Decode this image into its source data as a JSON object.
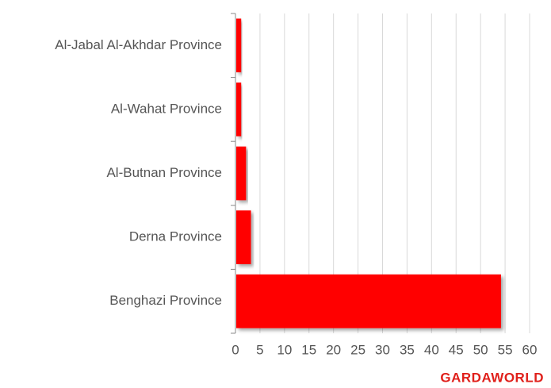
{
  "chart_data": {
    "type": "hbar",
    "categories": [
      "Al-Jabal Al-Akhdar Province",
      "Al-Wahat Province",
      "Al-Butnan Province",
      "Derna Province",
      "Benghazi Province"
    ],
    "values": [
      1,
      1,
      2,
      3,
      54
    ],
    "color": "#ff0000",
    "xlim": [
      0,
      60
    ],
    "xticks": [
      0,
      5,
      10,
      15,
      20,
      25,
      30,
      35,
      40,
      45,
      50,
      55,
      60
    ],
    "grid": true,
    "logo": "GARDAWORLD"
  }
}
